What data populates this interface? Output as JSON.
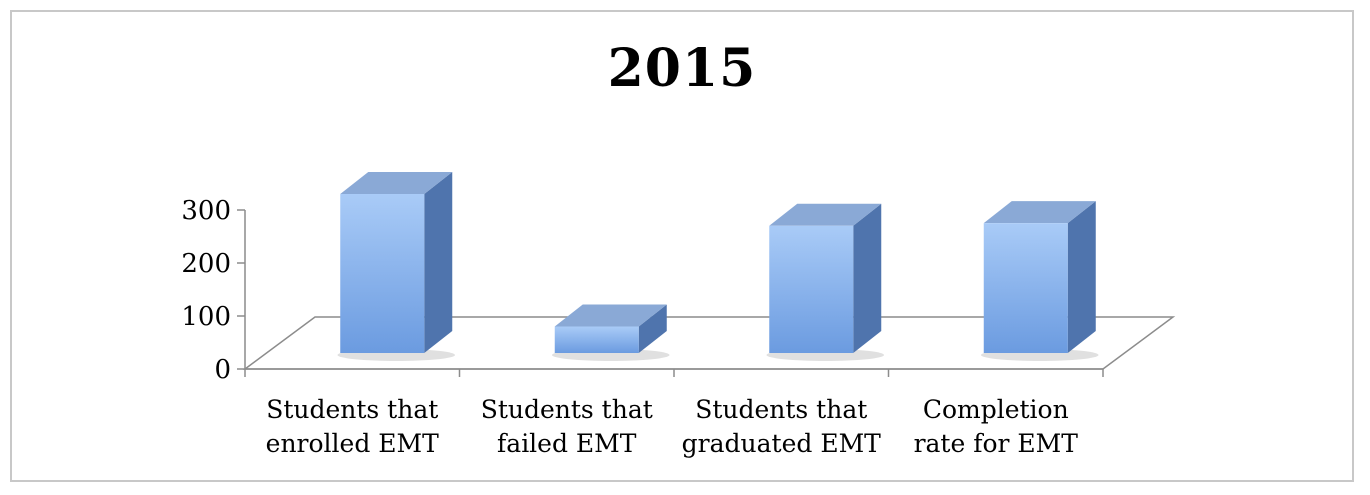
{
  "chart_data": {
    "type": "bar",
    "title": "2015",
    "categories": [
      [
        "Students that",
        "enrolled EMT"
      ],
      [
        "Students that",
        "failed EMT"
      ],
      [
        "Students that",
        "graduated EMT"
      ],
      [
        "Completion",
        "rate for EMT"
      ]
    ],
    "values": [
      300,
      50,
      240,
      245
    ],
    "ylim": [
      0,
      300
    ],
    "yticks": [
      0,
      100,
      200,
      300
    ],
    "grid": false,
    "style": "3d",
    "colors": {
      "bar_front_light": "#a9cbf7",
      "bar_front_dark": "#6b9be0",
      "bar_top": "#8aa9d6",
      "bar_side": "#4f74ad",
      "axis": "#8c8c8c"
    }
  }
}
